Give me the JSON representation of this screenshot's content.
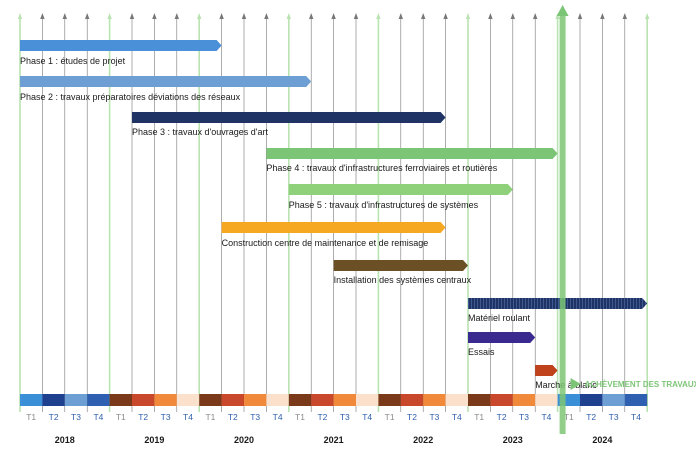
{
  "chart_data": {
    "type": "gantt",
    "years": [
      "2018",
      "2019",
      "2020",
      "2021",
      "2022",
      "2023",
      "2024"
    ],
    "quarters": [
      "T1",
      "T2",
      "T3",
      "T4"
    ],
    "quarter_colors": [
      "#3a8fd6",
      "#1f3f8f",
      "#6e9fd4",
      "#2e5fb0"
    ],
    "quarter_colors_2019_2023": [
      "#7a3a1a",
      "#c9472a",
      "#f08a3a",
      "#fbe0cc"
    ],
    "quarter_label_colors": [
      "#8a8a8a",
      "#2e5fb0",
      "#2e5fb0",
      "#2e5fb0"
    ],
    "tasks": [
      {
        "label": "Phase 1 : études de projet",
        "start": 0,
        "end": 4.5,
        "color": "#4a90d9"
      },
      {
        "label": "Phase 2 : travaux préparatoires déviations des réseaux",
        "start": 0,
        "end": 6.5,
        "color": "#6e9fd4"
      },
      {
        "label": "Phase 3 : travaux d'ouvrages d'art",
        "start": 2.5,
        "end": 9.5,
        "color": "#1f3464"
      },
      {
        "label": "Phase 4 : travaux d'infrastructures ferroviaires et routières",
        "start": 5.5,
        "end": 12.0,
        "color": "#7cc576"
      },
      {
        "label": "Phase 5 : travaux d'infrastructures de systèmes",
        "start": 6.0,
        "end": 11.0,
        "color": "#8fd07a"
      },
      {
        "label": "Construction centre de maintenance et de remisage",
        "start": 4.5,
        "end": 9.5,
        "color": "#f7a823"
      },
      {
        "label": "Installation des systèmes centraux",
        "start": 7.0,
        "end": 10.0,
        "color": "#6b4f25"
      },
      {
        "label": "Matériel roulant",
        "start": 10.0,
        "end": 14.0,
        "color": "#1f3464"
      },
      {
        "label": "Essais",
        "start": 10.0,
        "end": 11.5,
        "color": "#3a2a8f"
      },
      {
        "label": "Marche à blanc",
        "start": 11.5,
        "end": 12.0,
        "color": "#c0421c"
      }
    ],
    "milestone": {
      "label": "ACHÈVEMENT DES TRAVAUX",
      "at": 12.0,
      "color": "#7cc576"
    }
  }
}
